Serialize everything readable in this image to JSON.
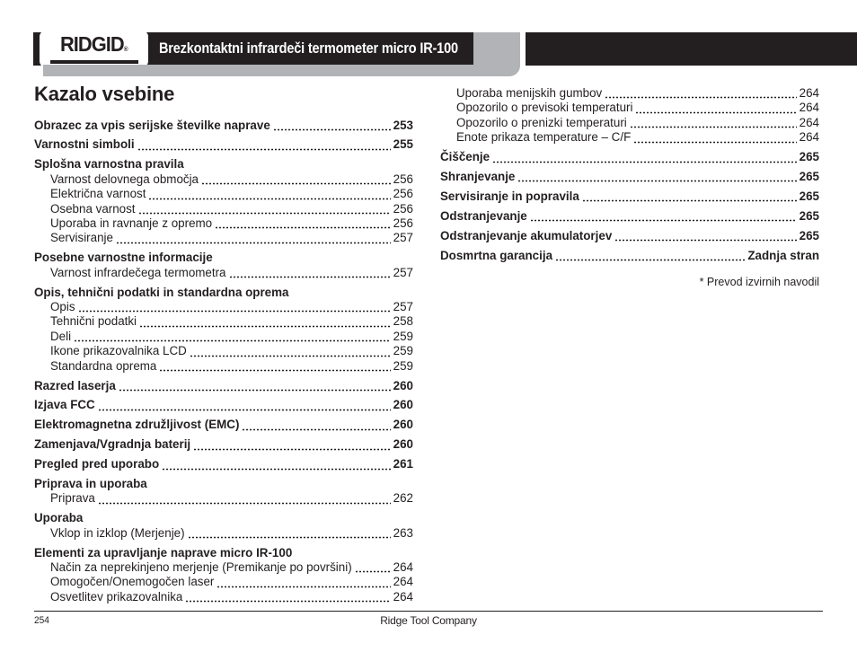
{
  "header": {
    "logo_text": "RIDGID",
    "logo_reg": "®",
    "title": "Brezkontaktni infrardeči termometer micro IR-100"
  },
  "page_title": "Kazalo vsebine",
  "toc": {
    "left": [
      {
        "label": "Obrazec za vpis serijske številke naprave",
        "page": "253",
        "bold": true
      },
      {
        "label": "Varnostni simboli",
        "page": "255",
        "bold": true
      },
      {
        "label": "Splošna varnostna pravila",
        "page": "",
        "bold": true
      },
      {
        "label": "Varnost delovnega območja",
        "page": "256",
        "indent": true
      },
      {
        "label": "Električna varnost",
        "page": "256",
        "indent": true
      },
      {
        "label": "Osebna varnost",
        "page": "256",
        "indent": true
      },
      {
        "label": "Uporaba in ravnanje z opremo",
        "page": "256",
        "indent": true
      },
      {
        "label": "Servisiranje",
        "page": "257",
        "indent": true
      },
      {
        "label": "Posebne varnostne informacije",
        "page": "",
        "bold": true
      },
      {
        "label": "Varnost infrardečega termometra",
        "page": "257",
        "indent": true
      },
      {
        "label": "Opis, tehnični podatki in standardna oprema",
        "page": "",
        "bold": true
      },
      {
        "label": "Opis",
        "page": "257",
        "indent": true
      },
      {
        "label": "Tehnični podatki",
        "page": "258",
        "indent": true
      },
      {
        "label": "Deli",
        "page": "259",
        "indent": true
      },
      {
        "label": "Ikone prikazovalnika LCD",
        "page": "259",
        "indent": true
      },
      {
        "label": "Standardna oprema",
        "page": "259",
        "indent": true
      },
      {
        "label": "Razred laserja",
        "page": "260",
        "bold": true
      },
      {
        "label": "Izjava FCC",
        "page": "260",
        "bold": true
      },
      {
        "label": "Elektromagnetna združljivost (EMC)",
        "page": "260",
        "bold": true
      },
      {
        "label": "Zamenjava/Vgradnja baterij",
        "page": "260",
        "bold": true
      },
      {
        "label": "Pregled pred uporabo",
        "page": "261",
        "bold": true
      },
      {
        "label": "Priprava in uporaba",
        "page": "",
        "bold": true
      },
      {
        "label": "Priprava",
        "page": "262",
        "indent": true
      },
      {
        "label": "Uporaba",
        "page": "",
        "bold": true
      },
      {
        "label": "Vklop in izklop (Merjenje)",
        "page": "263",
        "indent": true
      },
      {
        "label": "Elementi za upravljanje naprave micro IR-100",
        "page": "",
        "bold": true
      },
      {
        "label": "Način za neprekinjeno merjenje (Premikanje po površini)",
        "page": "264",
        "indent": true
      },
      {
        "label": "Omogočen/Onemogočen laser",
        "page": "264",
        "indent": true
      },
      {
        "label": "Osvetlitev prikazovalnika",
        "page": "264",
        "indent": true
      }
    ],
    "right": [
      {
        "label": "Uporaba menijskih gumbov",
        "page": "264",
        "indent": true
      },
      {
        "label": "Opozorilo o previsoki temperaturi",
        "page": "264",
        "indent": true
      },
      {
        "label": "Opozorilo o prenizki temperaturi",
        "page": "264",
        "indent": true
      },
      {
        "label": "Enote prikaza temperature – C/F",
        "page": "264",
        "indent": true
      },
      {
        "label": "Čiščenje",
        "page": "265",
        "bold": true
      },
      {
        "label": "Shranjevanje",
        "page": "265",
        "bold": true
      },
      {
        "label": "Servisiranje in popravila",
        "page": "265",
        "bold": true
      },
      {
        "label": "Odstranjevanje",
        "page": "265",
        "bold": true
      },
      {
        "label": "Odstranjevanje akumulatorjev",
        "page": "265",
        "bold": true
      },
      {
        "label": "Dosmrtna garancija",
        "page": "Zadnja stran",
        "bold": true
      }
    ]
  },
  "note": "* Prevod izvirnih navodil",
  "footer": {
    "page_number": "254",
    "company": "Ridge Tool Company"
  },
  "colors": {
    "bar_black": "#231f20",
    "bar_shadow_gray": "#b1b3b6",
    "text": "#231f20",
    "page_background": "#ffffff"
  }
}
